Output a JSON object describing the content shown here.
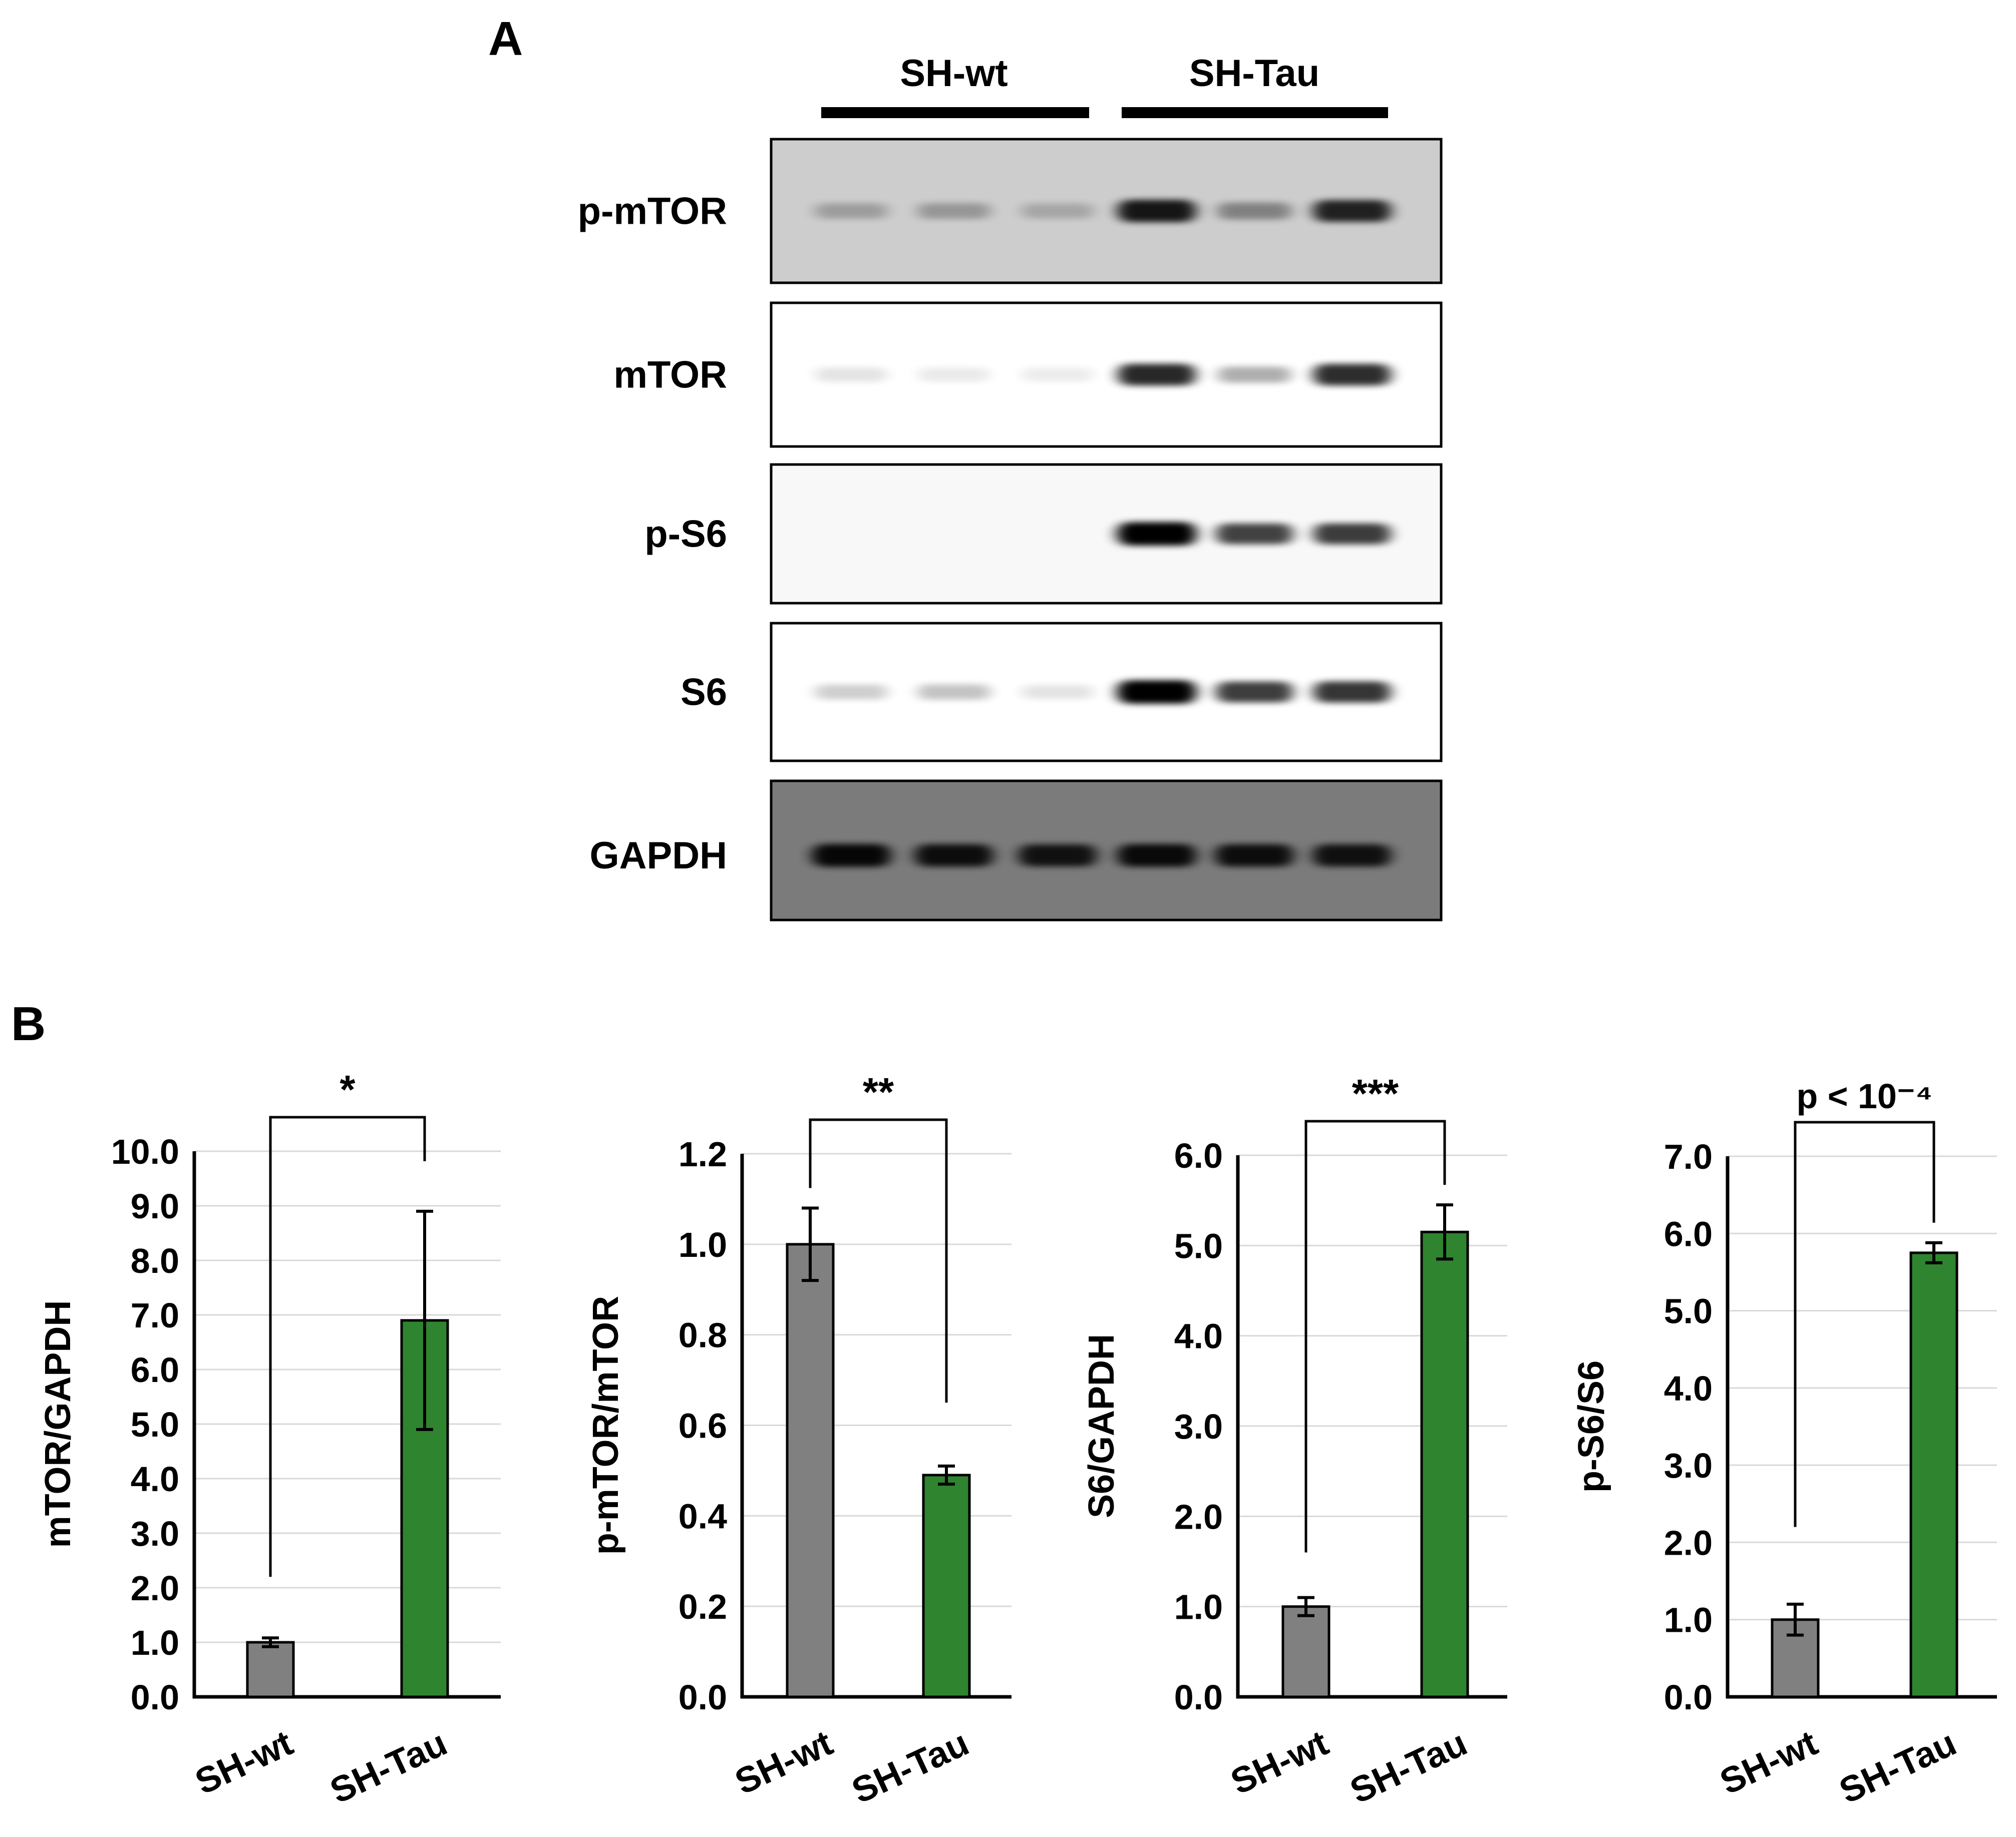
{
  "panels": {
    "a_label": "A",
    "b_label": "B"
  },
  "blot": {
    "groups": [
      "SH-wt",
      "SH-Tau"
    ],
    "rows": [
      {
        "label": "p-mTOR",
        "background": "#cdcdcd",
        "band_color": "#000000",
        "intensities": [
          0.22,
          0.25,
          0.18,
          0.85,
          0.35,
          0.8
        ]
      },
      {
        "label": "mTOR",
        "background": "#ffffff",
        "band_color": "#000000",
        "intensities": [
          0.1,
          0.08,
          0.07,
          0.8,
          0.3,
          0.78
        ]
      },
      {
        "label": "p-S6",
        "background": "#f8f8f8",
        "band_color": "#000000",
        "intensities": [
          0.02,
          0.02,
          0.01,
          0.95,
          0.7,
          0.72
        ]
      },
      {
        "label": "S6",
        "background": "#ffffff",
        "band_color": "#000000",
        "intensities": [
          0.18,
          0.22,
          0.1,
          0.95,
          0.72,
          0.75
        ]
      },
      {
        "label": "GAPDH",
        "background": "#7b7b7b",
        "band_color": "#000000",
        "intensities": [
          0.9,
          0.85,
          0.82,
          0.88,
          0.85,
          0.83
        ]
      }
    ]
  },
  "chart_data": [
    {
      "type": "bar",
      "categories": [
        "SH-wt",
        "SH-Tau"
      ],
      "values": [
        1.0,
        6.9
      ],
      "errors": [
        0.08,
        2.0
      ],
      "colors": [
        "#808080",
        "#2f842f"
      ],
      "ylabel": "mTOR/GAPDH",
      "ylim": [
        0,
        10
      ],
      "yticks": [
        "0.0",
        "1.0",
        "2.0",
        "3.0",
        "4.0",
        "5.0",
        "6.0",
        "7.0",
        "8.0",
        "9.0",
        "10.0"
      ],
      "grid": true,
      "significance": "*"
    },
    {
      "type": "bar",
      "categories": [
        "SH-wt",
        "SH-Tau"
      ],
      "values": [
        1.0,
        0.49
      ],
      "errors": [
        0.08,
        0.02
      ],
      "colors": [
        "#808080",
        "#2f842f"
      ],
      "ylabel": "p-mTOR/mTOR",
      "ylim": [
        0,
        1.2
      ],
      "yticks": [
        "0.0",
        "0.2",
        "0.4",
        "0.6",
        "0.8",
        "1.0",
        "1.2"
      ],
      "grid": true,
      "significance": "**"
    },
    {
      "type": "bar",
      "categories": [
        "SH-wt",
        "SH-Tau"
      ],
      "values": [
        1.0,
        5.15
      ],
      "errors": [
        0.1,
        0.3
      ],
      "colors": [
        "#808080",
        "#2f842f"
      ],
      "ylabel": "S6/GAPDH",
      "ylim": [
        0,
        6
      ],
      "yticks": [
        "0.0",
        "1.0",
        "2.0",
        "3.0",
        "4.0",
        "5.0",
        "6.0"
      ],
      "grid": true,
      "significance": "***"
    },
    {
      "type": "bar",
      "categories": [
        "SH-wt",
        "SH-Tau"
      ],
      "values": [
        1.0,
        5.75
      ],
      "errors": [
        0.2,
        0.13
      ],
      "colors": [
        "#808080",
        "#2f842f"
      ],
      "ylabel": "p-S6/S6",
      "ylim": [
        0,
        7
      ],
      "yticks": [
        "0.0",
        "1.0",
        "2.0",
        "3.0",
        "4.0",
        "5.0",
        "6.0",
        "7.0"
      ],
      "grid": true,
      "significance": "p < 10⁻⁴"
    }
  ]
}
